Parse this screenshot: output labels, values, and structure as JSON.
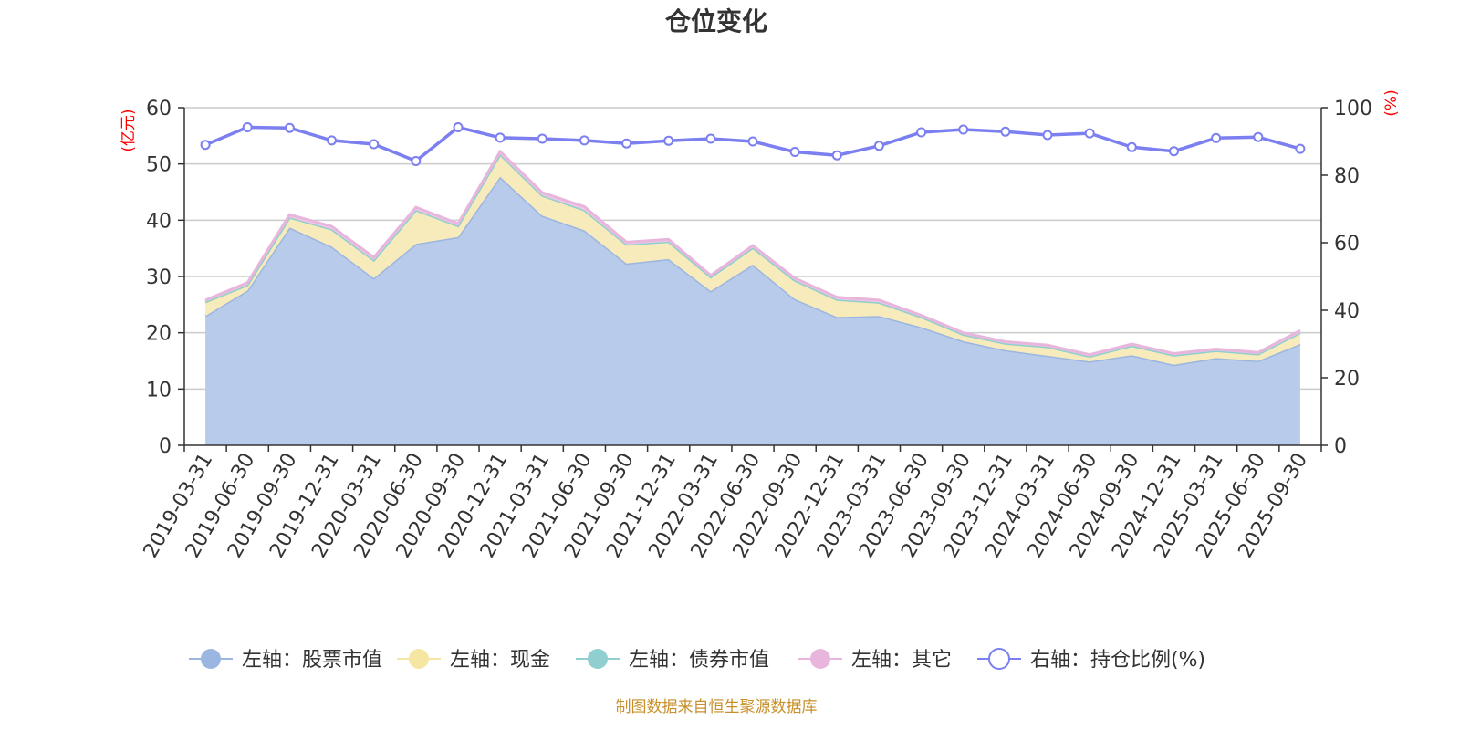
{
  "chart_data": {
    "type": "area",
    "title": "仓位变化",
    "x": [
      "2019-03-31",
      "2019-06-30",
      "2019-09-30",
      "2019-12-31",
      "2020-03-31",
      "2020-06-30",
      "2020-09-30",
      "2020-12-31",
      "2021-03-31",
      "2021-06-30",
      "2021-09-30",
      "2021-12-31",
      "2022-03-31",
      "2022-06-30",
      "2022-09-30",
      "2022-12-31",
      "2023-03-31",
      "2023-06-30",
      "2023-09-30",
      "2023-12-31",
      "2024-03-31",
      "2024-06-30",
      "2024-09-30",
      "2024-12-31",
      "2025-03-31",
      "2025-06-30",
      "2025-09-30"
    ],
    "left_axis": {
      "unit": "(亿元)",
      "ylim": [
        0,
        60
      ],
      "ticks": [
        "0",
        "10",
        "20",
        "30",
        "40",
        "50",
        "60"
      ]
    },
    "right_axis": {
      "unit": "(%)",
      "ylim": [
        0,
        100
      ],
      "ticks": [
        "0",
        "20",
        "40",
        "60",
        "80",
        "100"
      ]
    },
    "stacked_series": [
      {
        "name": "左轴：股票市值",
        "color": "#9bb6e0",
        "fill": "#b8cbea",
        "values": [
          23.0,
          27.5,
          38.7,
          35.3,
          29.7,
          35.8,
          37.0,
          47.7,
          40.8,
          38.2,
          32.3,
          33.1,
          27.4,
          32.1,
          26.0,
          22.8,
          23.0,
          21.0,
          18.5,
          16.9,
          15.9,
          14.9,
          16.0,
          14.3,
          15.5,
          15.0,
          18.0
        ]
      },
      {
        "name": "左轴：现金",
        "color": "#f5e6a3",
        "fill": "#f8ebbb",
        "values": [
          2.3,
          1.0,
          1.8,
          3.1,
          3.2,
          6.0,
          2.0,
          4.0,
          3.6,
          3.6,
          3.4,
          3.1,
          2.5,
          3.0,
          3.3,
          3.1,
          2.4,
          1.8,
          1.2,
          1.2,
          1.6,
          0.9,
          1.7,
          1.7,
          1.3,
          1.2,
          2.0
        ]
      },
      {
        "name": "左轴：债券市值",
        "color": "#8fcfcf",
        "fill": "#a9dada",
        "values": [
          0.2,
          0.0,
          0.0,
          0.0,
          0.0,
          0.0,
          0.0,
          0.0,
          0.0,
          0.0,
          0.0,
          0.0,
          0.0,
          0.0,
          0.0,
          0.0,
          0.0,
          0.0,
          0.0,
          0.0,
          0.0,
          0.0,
          0.0,
          0.0,
          0.0,
          0.0,
          0.0
        ]
      },
      {
        "name": "左轴：其它",
        "color": "#e8b6dc",
        "fill": "#eec8e4",
        "values": [
          0.3,
          0.4,
          0.5,
          0.5,
          0.5,
          0.5,
          0.4,
          0.5,
          0.5,
          0.6,
          0.4,
          0.4,
          0.3,
          0.4,
          0.4,
          0.4,
          0.4,
          0.3,
          0.3,
          0.3,
          0.3,
          0.3,
          0.3,
          0.3,
          0.3,
          0.3,
          0.4
        ]
      }
    ],
    "line_series": {
      "name": "右轴：持仓比例(%)",
      "color": "#7b7ff0",
      "values": [
        89.0,
        94.2,
        94.0,
        90.3,
        89.2,
        84.2,
        94.2,
        91.1,
        90.8,
        90.3,
        89.4,
        90.2,
        90.8,
        90.0,
        86.9,
        85.9,
        88.7,
        92.7,
        93.5,
        92.9,
        91.9,
        92.4,
        88.3,
        87.1,
        91.0,
        91.3,
        87.8
      ]
    },
    "legend_position": "bottom",
    "grid": true
  },
  "source_note": "制图数据来自恒生聚源数据库"
}
